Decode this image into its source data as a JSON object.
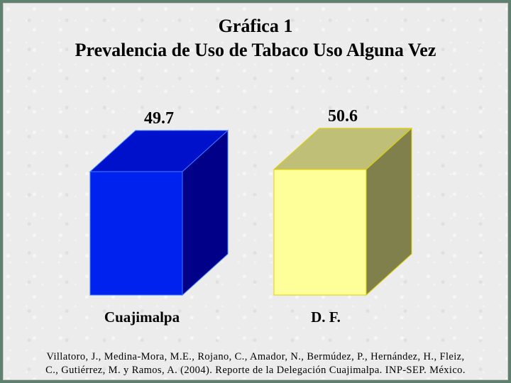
{
  "title_line1": "Gráfica 1",
  "title_line2": "Prevalencia de Uso de Tabaco Uso Alguna Vez",
  "citation_line1": "Villatoro, J., Medina-Mora, M.E., Rojano, C., Amador, N., Bermúdez, P., Hernández, H., Fleiz,",
  "citation_line2": "C., Gutiérrez, M. y Ramos, A. (2004). Reporte de la Delegación Cuajimalpa. INP-SEP. México.",
  "chart_data": {
    "type": "bar",
    "categories": [
      "Cuajimalpa",
      "D. F."
    ],
    "values": [
      49.7,
      50.6
    ],
    "value_labels": [
      "49.7",
      "50.6"
    ],
    "title": "Gráfica 1 Prevalencia de Uso de Tabaco Uso Alguna Vez",
    "xlabel": "",
    "ylabel": "",
    "grid": false,
    "bar_style": "3d-box",
    "colors": [
      {
        "front": "#0022ee",
        "top": "#0011cc",
        "side": "#000088",
        "edge": "#3a7dff"
      },
      {
        "front": "#ffff99",
        "top": "#bfbf77",
        "side": "#80804c",
        "edge": "#e0d000"
      }
    ]
  }
}
